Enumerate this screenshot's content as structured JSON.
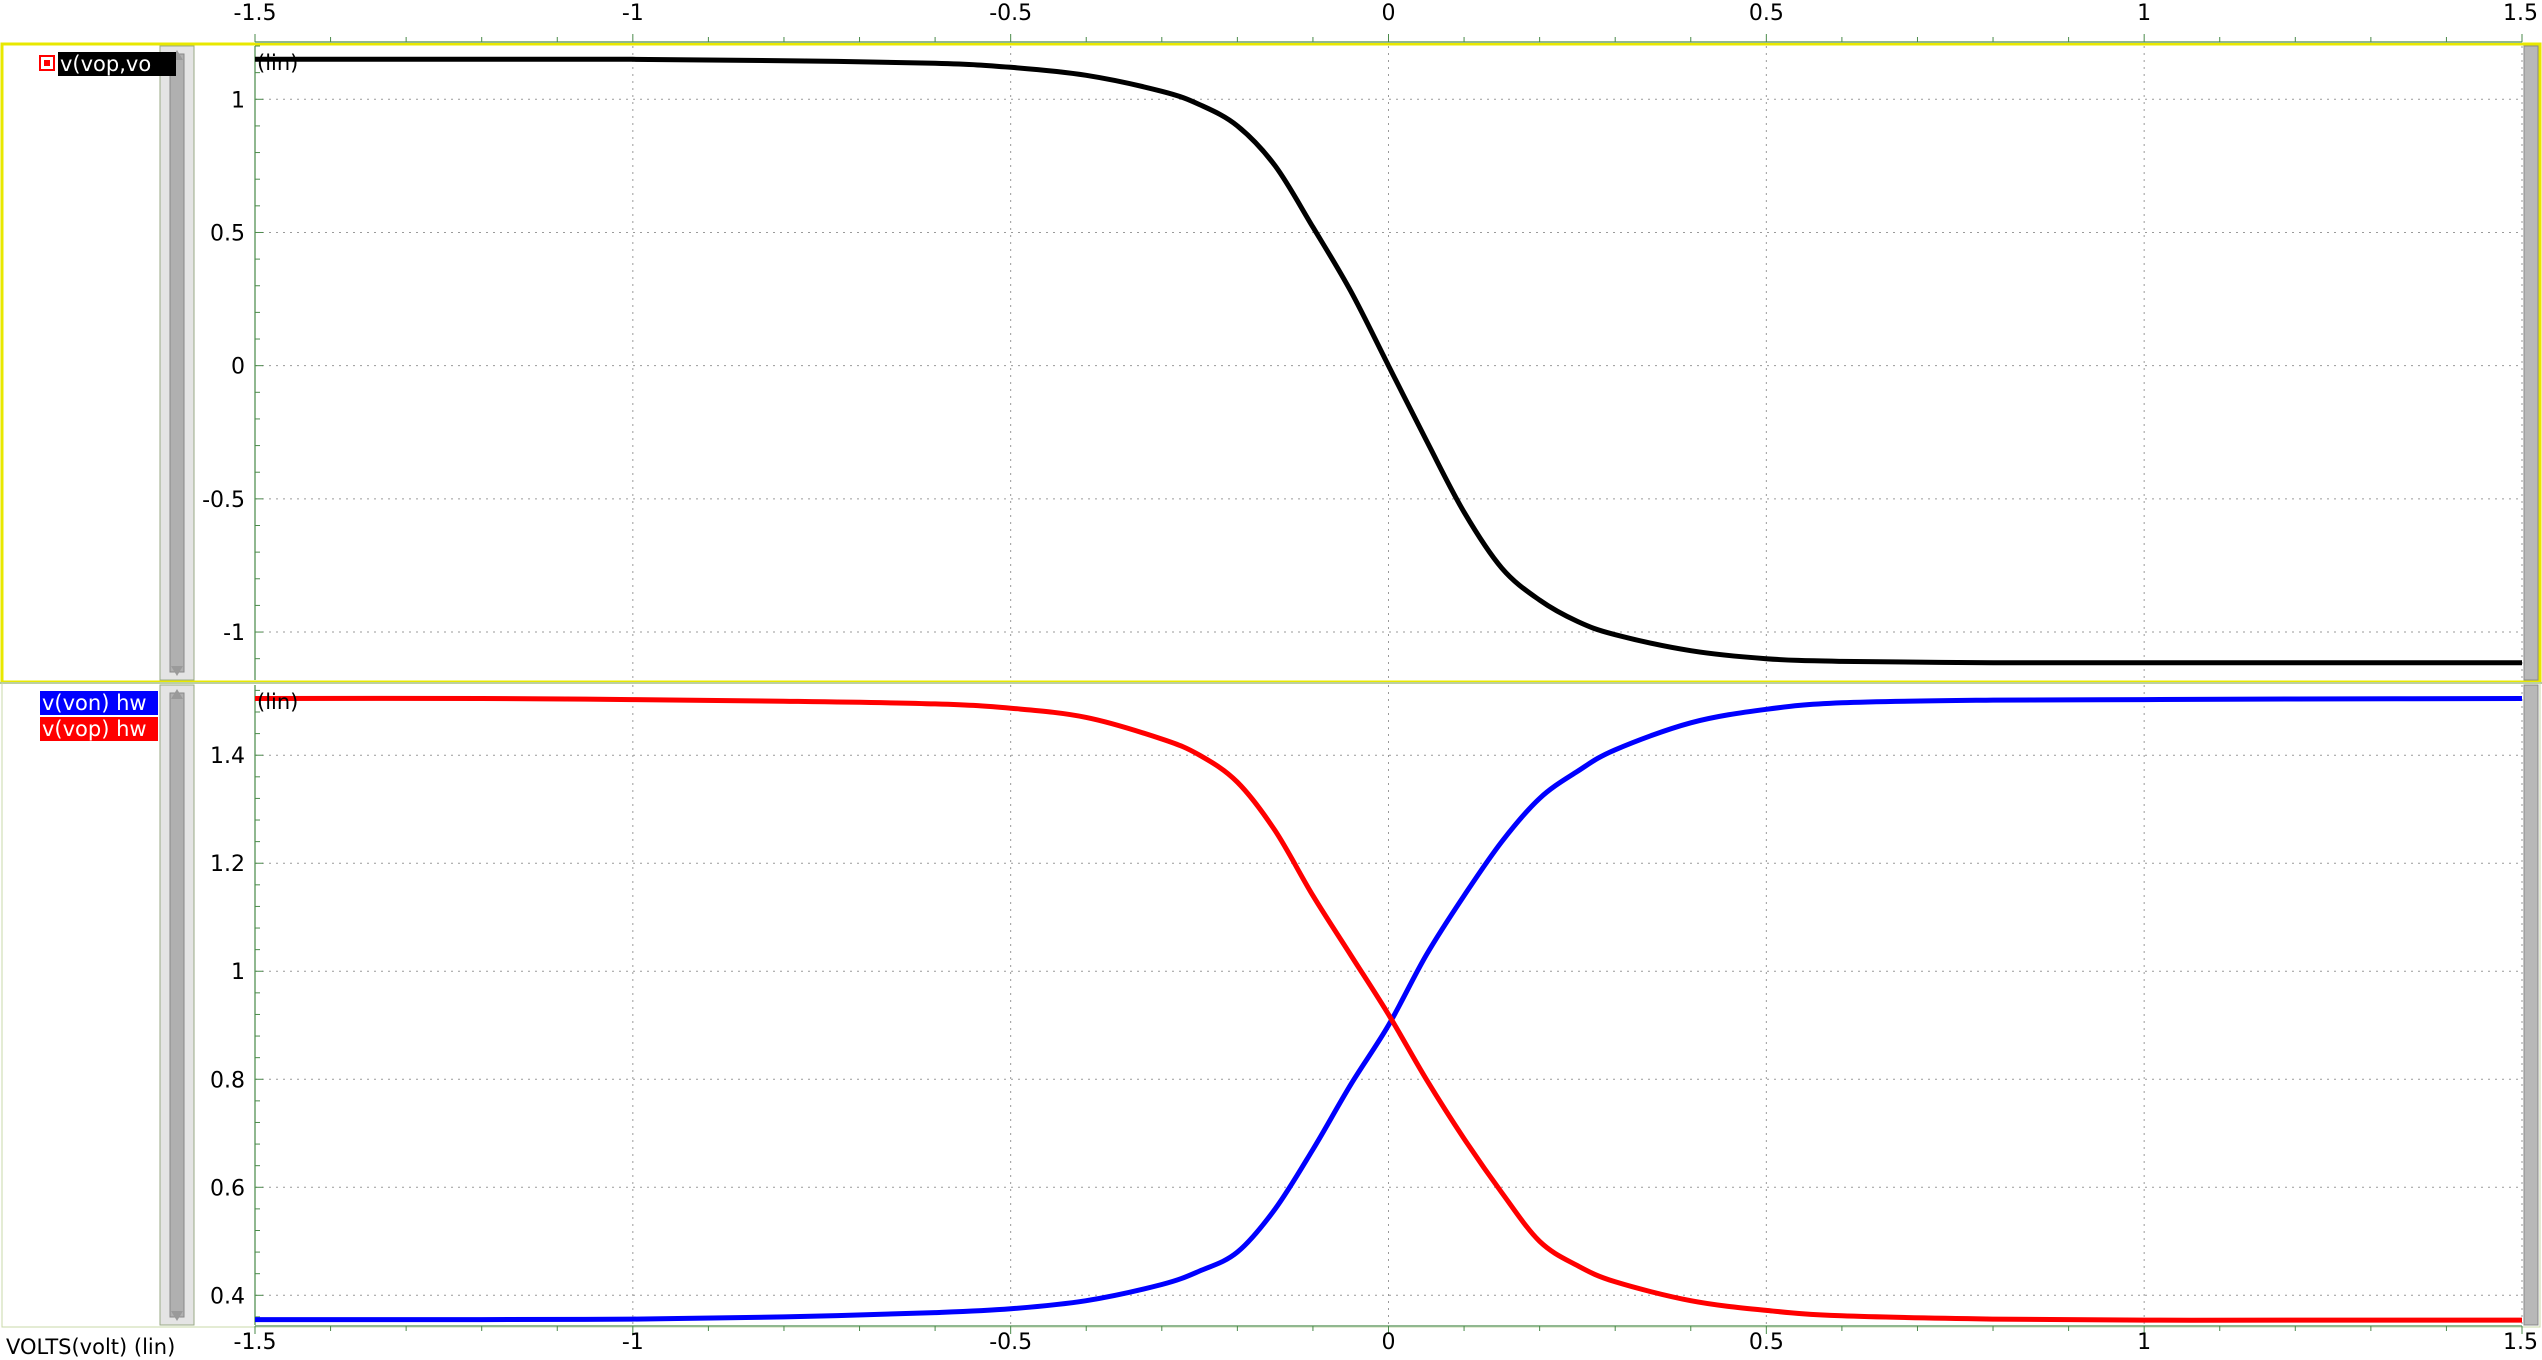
{
  "x_axis_label": "VOLTS(volt) (lin)",
  "chart_data": [
    {
      "type": "line",
      "scale_label": "(lin)",
      "x_ticks": [
        "-1.5",
        "-1",
        "-0.5",
        "0",
        "0.5",
        "1",
        "1.5"
      ],
      "y_ticks": [
        "1",
        "0.5",
        "0",
        "-0.5",
        "-1"
      ],
      "xlim": [
        -1.5,
        1.5
      ],
      "ylim": [
        -1.18,
        1.2
      ],
      "grid": true,
      "series": [
        {
          "name": "v(vop,vo",
          "color": "#000000",
          "x": [
            -1.5,
            -1.2,
            -1.0,
            -0.8,
            -0.6,
            -0.5,
            -0.4,
            -0.3,
            -0.25,
            -0.2,
            -0.15,
            -0.1,
            -0.05,
            0.0,
            0.05,
            0.1,
            0.15,
            0.2,
            0.25,
            0.3,
            0.4,
            0.5,
            0.6,
            0.8,
            1.0,
            1.2,
            1.5
          ],
          "y": [
            1.15,
            1.15,
            1.15,
            1.145,
            1.135,
            1.12,
            1.09,
            1.03,
            0.98,
            0.9,
            0.75,
            0.52,
            0.28,
            0.0,
            -0.28,
            -0.55,
            -0.76,
            -0.88,
            -0.96,
            -1.01,
            -1.07,
            -1.1,
            -1.11,
            -1.115,
            -1.115,
            -1.115,
            -1.115
          ]
        }
      ]
    },
    {
      "type": "line",
      "scale_label": "(lin)",
      "x_ticks": [
        "-1.5",
        "-1",
        "-0.5",
        "0",
        "0.5",
        "1",
        "1.5"
      ],
      "y_ticks": [
        "1.4",
        "1.2",
        "1",
        "0.8",
        "0.6",
        "0.4"
      ],
      "xlim": [
        -1.5,
        1.5
      ],
      "ylim": [
        0.345,
        1.53
      ],
      "grid": true,
      "series": [
        {
          "name": "v(von) hw",
          "color": "#0000ff",
          "x": [
            -1.5,
            -1.2,
            -1.0,
            -0.8,
            -0.6,
            -0.5,
            -0.4,
            -0.3,
            -0.25,
            -0.2,
            -0.15,
            -0.1,
            -0.05,
            0.0,
            0.05,
            0.1,
            0.15,
            0.2,
            0.25,
            0.3,
            0.4,
            0.5,
            0.6,
            0.8,
            1.0,
            1.2,
            1.5
          ],
          "y": [
            0.355,
            0.355,
            0.356,
            0.36,
            0.368,
            0.375,
            0.39,
            0.42,
            0.445,
            0.48,
            0.56,
            0.67,
            0.79,
            0.9,
            1.03,
            1.14,
            1.24,
            1.32,
            1.37,
            1.41,
            1.46,
            1.485,
            1.497,
            1.502,
            1.503,
            1.504,
            1.505
          ]
        },
        {
          "name": "v(vop) hw",
          "color": "#ff0000",
          "x": [
            -1.5,
            -1.2,
            -1.0,
            -0.8,
            -0.6,
            -0.5,
            -0.4,
            -0.3,
            -0.25,
            -0.2,
            -0.15,
            -0.1,
            -0.05,
            0.0,
            0.05,
            0.1,
            0.15,
            0.2,
            0.25,
            0.3,
            0.4,
            0.5,
            0.6,
            0.8,
            1.0,
            1.2,
            1.5
          ],
          "y": [
            1.505,
            1.505,
            1.503,
            1.5,
            1.495,
            1.487,
            1.47,
            1.43,
            1.4,
            1.35,
            1.26,
            1.14,
            1.03,
            0.92,
            0.8,
            0.69,
            0.59,
            0.5,
            0.455,
            0.425,
            0.39,
            0.372,
            0.362,
            0.356,
            0.354,
            0.354,
            0.354
          ]
        }
      ]
    }
  ]
}
